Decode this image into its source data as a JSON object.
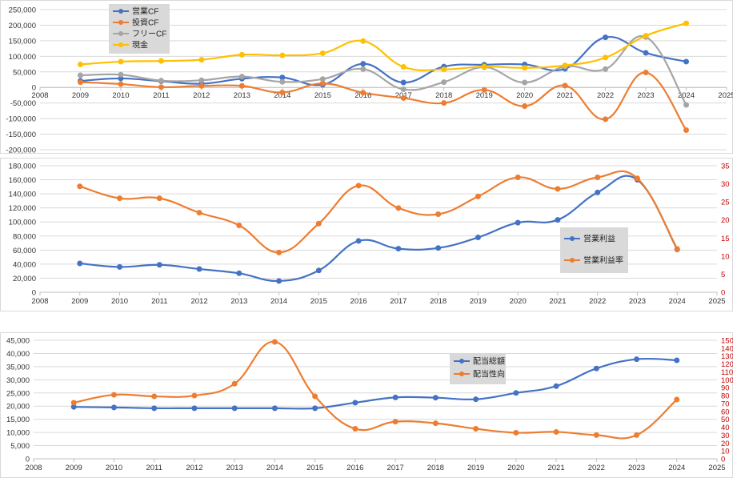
{
  "colors": {
    "blue": "#4472c4",
    "orange": "#ed7d31",
    "gray": "#a5a5a5",
    "gold": "#ffc000",
    "right_axis": "#c00000",
    "left_axis_mid": "#2e75b6"
  },
  "chart_data": [
    {
      "type": "scatter",
      "title": "",
      "xlim": [
        2008,
        2025
      ],
      "x_ticks": [
        "2008",
        "2009",
        "2010",
        "2011",
        "2012",
        "2013",
        "2014",
        "2015",
        "2016",
        "2017",
        "2018",
        "2019",
        "2020",
        "2021",
        "2022",
        "2023",
        "2024",
        "2025"
      ],
      "ylim": [
        -200000,
        250000
      ],
      "y_ticks": [
        "-200,000",
        "-150,000",
        "-100,000",
        "-50,000",
        "0",
        "50,000",
        "100,000",
        "150,000",
        "200,000",
        "250,000"
      ],
      "legend_position": "top-left",
      "series": [
        {
          "name": "営業CF",
          "color": "#4472c4",
          "x": [
            2009,
            2010,
            2011,
            2012,
            2013,
            2014,
            2015,
            2016,
            2017,
            2018,
            2019,
            2020,
            2021,
            2022,
            2023,
            2024
          ],
          "values": [
            21000,
            29000,
            20000,
            12000,
            28000,
            32000,
            9000,
            76000,
            16000,
            67000,
            73000,
            74000,
            60000,
            161000,
            111000,
            83000
          ]
        },
        {
          "name": "投資CF",
          "color": "#ed7d31",
          "x": [
            2009,
            2010,
            2011,
            2012,
            2013,
            2014,
            2015,
            2016,
            2017,
            2018,
            2019,
            2020,
            2021,
            2022,
            2023,
            2024
          ],
          "values": [
            17000,
            11000,
            1000,
            5000,
            5000,
            -16000,
            13000,
            -17000,
            -34000,
            -50000,
            -8000,
            -60000,
            6000,
            -102000,
            48000,
            -137000
          ]
        },
        {
          "name": "フリーCF",
          "color": "#a5a5a5",
          "x": [
            2009,
            2010,
            2011,
            2012,
            2013,
            2014,
            2015,
            2016,
            2017,
            2018,
            2019,
            2020,
            2021,
            2022,
            2023,
            2024
          ],
          "values": [
            39000,
            41000,
            22000,
            23000,
            35000,
            18000,
            27000,
            59000,
            -6000,
            17000,
            65000,
            16000,
            67000,
            59000,
            162000,
            -56000
          ]
        },
        {
          "name": "現金",
          "color": "#ffc000",
          "x": [
            2009,
            2010,
            2011,
            2012,
            2013,
            2014,
            2015,
            2016,
            2017,
            2018,
            2019,
            2020,
            2021,
            2022,
            2023,
            2024
          ],
          "values": [
            74000,
            83000,
            85000,
            89000,
            105000,
            103000,
            110000,
            149000,
            66000,
            58000,
            67000,
            63000,
            71000,
            96000,
            166000,
            206000
          ]
        }
      ]
    },
    {
      "type": "scatter",
      "title": "",
      "xlim": [
        2008,
        2025
      ],
      "x_ticks": [
        "2008",
        "2009",
        "2010",
        "2011",
        "2012",
        "2013",
        "2014",
        "2015",
        "2016",
        "2017",
        "2018",
        "2019",
        "2020",
        "2021",
        "2022",
        "2023",
        "2024",
        "2025"
      ],
      "ylim": [
        0,
        180000
      ],
      "y_ticks": [
        "0",
        "20,000",
        "40,000",
        "60,000",
        "80,000",
        "100,000",
        "120,000",
        "140,000",
        "160,000",
        "180,000"
      ],
      "y2lim": [
        0,
        35
      ],
      "y2_ticks": [
        "0",
        "5",
        "10",
        "15",
        "20",
        "25",
        "30",
        "35"
      ],
      "legend_position": "right",
      "series": [
        {
          "name": "営業利益",
          "axis": "left",
          "color": "#4472c4",
          "x": [
            2009,
            2010,
            2011,
            2012,
            2013,
            2014,
            2015,
            2016,
            2017,
            2018,
            2019,
            2020,
            2021,
            2022,
            2023,
            2024
          ],
          "values": [
            41000,
            36000,
            39000,
            33000,
            27000,
            16000,
            31000,
            73000,
            62000,
            63000,
            78000,
            99000,
            103000,
            142000,
            160000,
            61000
          ]
        },
        {
          "name": "営業利益率",
          "axis": "right",
          "color": "#ed7d31",
          "x": [
            2009,
            2010,
            2011,
            2012,
            2013,
            2014,
            2015,
            2016,
            2017,
            2018,
            2019,
            2020,
            2021,
            2022,
            2023,
            2024
          ],
          "values": [
            29.3,
            26.0,
            26.0,
            22.0,
            18.5,
            11.0,
            19.0,
            29.5,
            23.3,
            21.6,
            26.5,
            31.8,
            28.6,
            31.8,
            31.5,
            12.0
          ]
        }
      ]
    },
    {
      "type": "scatter",
      "title": "",
      "xlim": [
        2008,
        2025
      ],
      "x_ticks": [
        "2008",
        "2009",
        "2010",
        "2011",
        "2012",
        "2013",
        "2014",
        "2015",
        "2016",
        "2017",
        "2018",
        "2019",
        "2020",
        "2021",
        "2022",
        "2023",
        "2024",
        "2025"
      ],
      "ylim": [
        0,
        45000
      ],
      "y_ticks": [
        "0",
        "5,000",
        "10,000",
        "15,000",
        "20,000",
        "25,000",
        "30,000",
        "35,000",
        "40,000",
        "45,000"
      ],
      "y2lim": [
        0,
        150
      ],
      "y2_ticks": [
        "0",
        "10",
        "20",
        "30",
        "40",
        "50",
        "60",
        "70",
        "80",
        "90",
        "100",
        "110",
        "120",
        "130",
        "140",
        "150"
      ],
      "legend_position": "top-right",
      "series": [
        {
          "name": "配当総額",
          "axis": "left",
          "color": "#4472c4",
          "x": [
            2009,
            2010,
            2011,
            2012,
            2013,
            2014,
            2015,
            2016,
            2017,
            2018,
            2019,
            2020,
            2021,
            2022,
            2023,
            2024
          ],
          "values": [
            19700,
            19500,
            19200,
            19200,
            19200,
            19200,
            19200,
            21300,
            23300,
            23200,
            22600,
            25000,
            27600,
            34300,
            37800,
            37400
          ]
        },
        {
          "name": "配当性向",
          "axis": "right",
          "color": "#ed7d31",
          "x": [
            2009,
            2010,
            2011,
            2012,
            2013,
            2014,
            2015,
            2016,
            2017,
            2018,
            2019,
            2020,
            2021,
            2022,
            2023,
            2024
          ],
          "values": [
            71,
            81,
            79,
            80,
            95,
            148,
            79,
            38,
            47,
            45,
            38,
            33,
            34,
            30,
            30,
            75
          ]
        }
      ]
    }
  ]
}
